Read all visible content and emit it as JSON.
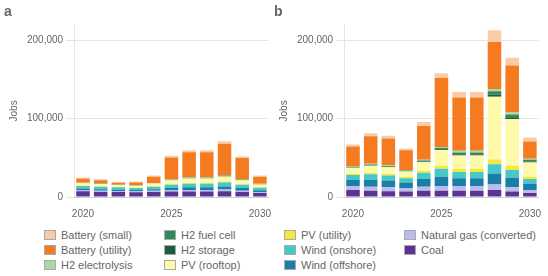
{
  "chart_data": [
    {
      "type": "bar",
      "title": "a",
      "ylabel": "Jobs",
      "stacked": true,
      "grid": true,
      "legend": "bottom",
      "categories": [
        "2020",
        null,
        null,
        null,
        null,
        "2025",
        null,
        null,
        null,
        null,
        "2030"
      ],
      "ylim": [
        0,
        220000
      ],
      "yticks": [
        0,
        {
          "value": 100000,
          "label": "100,000"
        },
        {
          "value": 200000,
          "label": "200,000"
        }
      ],
      "series": [
        {
          "name": "Coal",
          "color": "#5C3292",
          "values": [
            7500,
            6500,
            6500,
            6000,
            6500,
            7000,
            7000,
            7000,
            7500,
            6500,
            5000
          ]
        },
        {
          "name": "Natural gas (converted)",
          "color": "#BBBBEE",
          "values": [
            1500,
            1500,
            1200,
            1200,
            1500,
            1500,
            2000,
            2000,
            2000,
            1500,
            1200
          ]
        },
        {
          "name": "Wind (offshore)",
          "color": "#1A7FA6",
          "values": [
            2000,
            2000,
            1800,
            1800,
            2000,
            3000,
            3500,
            3500,
            4000,
            3500,
            2500
          ]
        },
        {
          "name": "Wind (onshore)",
          "color": "#44C8C8",
          "values": [
            3000,
            3000,
            2800,
            2500,
            3000,
            4000,
            4500,
            4500,
            5000,
            4000,
            3000
          ]
        },
        {
          "name": "PV (utility)",
          "color": "#F5E642",
          "values": [
            500,
            500,
            400,
            400,
            600,
            800,
            1000,
            1000,
            1200,
            900,
            700
          ]
        },
        {
          "name": "PV (rooftop)",
          "color": "#FFFAAA",
          "values": [
            3000,
            3000,
            2500,
            2500,
            3500,
            5000,
            5500,
            5500,
            6500,
            5000,
            3500
          ]
        },
        {
          "name": "H2 storage",
          "color": "#1B5E3B",
          "values": [
            200,
            200,
            150,
            150,
            200,
            300,
            400,
            400,
            500,
            400,
            300
          ]
        },
        {
          "name": "H2 fuel cell",
          "color": "#2E8B57",
          "values": [
            300,
            300,
            250,
            250,
            350,
            500,
            600,
            600,
            700,
            550,
            400
          ]
        },
        {
          "name": "H2 electrolysis",
          "color": "#A8D8A8",
          "values": [
            300,
            300,
            250,
            250,
            350,
            500,
            600,
            600,
            700,
            550,
            400
          ]
        },
        {
          "name": "Battery (utility)",
          "color": "#F47B20",
          "values": [
            5000,
            4000,
            2500,
            3500,
            8000,
            28000,
            32000,
            32000,
            40000,
            27000,
            9000
          ]
        },
        {
          "name": "Battery (small)",
          "color": "#FBCBA7",
          "values": [
            1500,
            1500,
            1200,
            1200,
            1500,
            2000,
            2500,
            2500,
            3000,
            2000,
            1500
          ]
        }
      ]
    },
    {
      "type": "bar",
      "title": "b",
      "ylabel": "Jobs",
      "stacked": true,
      "grid": true,
      "legend": "bottom",
      "categories": [
        "2020",
        null,
        null,
        null,
        null,
        "2025",
        null,
        null,
        null,
        null,
        "2030"
      ],
      "ylim": [
        0,
        220000
      ],
      "yticks": [
        0,
        {
          "value": 100000,
          "label": "100,000"
        },
        {
          "value": 200000,
          "label": "200,000"
        }
      ],
      "series": [
        {
          "name": "Coal",
          "color": "#5C3292",
          "values": [
            9000,
            8000,
            7500,
            7000,
            8000,
            8000,
            8000,
            8000,
            9000,
            7000,
            5000
          ]
        },
        {
          "name": "Natural gas (converted)",
          "color": "#BBBBEE",
          "values": [
            5000,
            5000,
            5000,
            4500,
            5000,
            6000,
            6000,
            6000,
            7000,
            5500,
            4000
          ]
        },
        {
          "name": "Wind (offshore)",
          "color": "#1A7FA6",
          "values": [
            8000,
            9000,
            8500,
            7000,
            10000,
            12000,
            10000,
            10000,
            14000,
            12000,
            8000
          ]
        },
        {
          "name": "Wind (onshore)",
          "color": "#44C8C8",
          "values": [
            6000,
            7000,
            6500,
            5500,
            8000,
            10000,
            8000,
            8000,
            12000,
            10000,
            6000
          ]
        },
        {
          "name": "PV (utility)",
          "color": "#F5E642",
          "values": [
            1500,
            2000,
            2000,
            1500,
            2500,
            4000,
            4000,
            4000,
            6000,
            5000,
            3000
          ]
        },
        {
          "name": "PV (rooftop)",
          "color": "#FFFAAA",
          "values": [
            8000,
            9000,
            8500,
            7000,
            11000,
            20000,
            17000,
            17000,
            80000,
            60000,
            18000
          ]
        },
        {
          "name": "H2 storage",
          "color": "#1B5E3B",
          "values": [
            500,
            600,
            600,
            500,
            800,
            1000,
            1500,
            1500,
            3000,
            2500,
            1500
          ]
        },
        {
          "name": "H2 fuel cell",
          "color": "#2E8B57",
          "values": [
            800,
            1000,
            1000,
            800,
            1200,
            1500,
            2500,
            2500,
            4000,
            3500,
            2000
          ]
        },
        {
          "name": "H2 electrolysis",
          "color": "#A8D8A8",
          "values": [
            800,
            1000,
            1000,
            800,
            1200,
            1500,
            2000,
            2000,
            3000,
            2500,
            1500
          ]
        },
        {
          "name": "Battery (utility)",
          "color": "#F47B20",
          "values": [
            25000,
            35000,
            34000,
            25000,
            43000,
            88000,
            68000,
            68000,
            60000,
            60000,
            22000
          ]
        },
        {
          "name": "Battery (small)",
          "color": "#FBCBA7",
          "values": [
            2500,
            4000,
            3500,
            2500,
            5000,
            6000,
            7000,
            7000,
            15000,
            10000,
            5000
          ]
        }
      ]
    }
  ]
}
